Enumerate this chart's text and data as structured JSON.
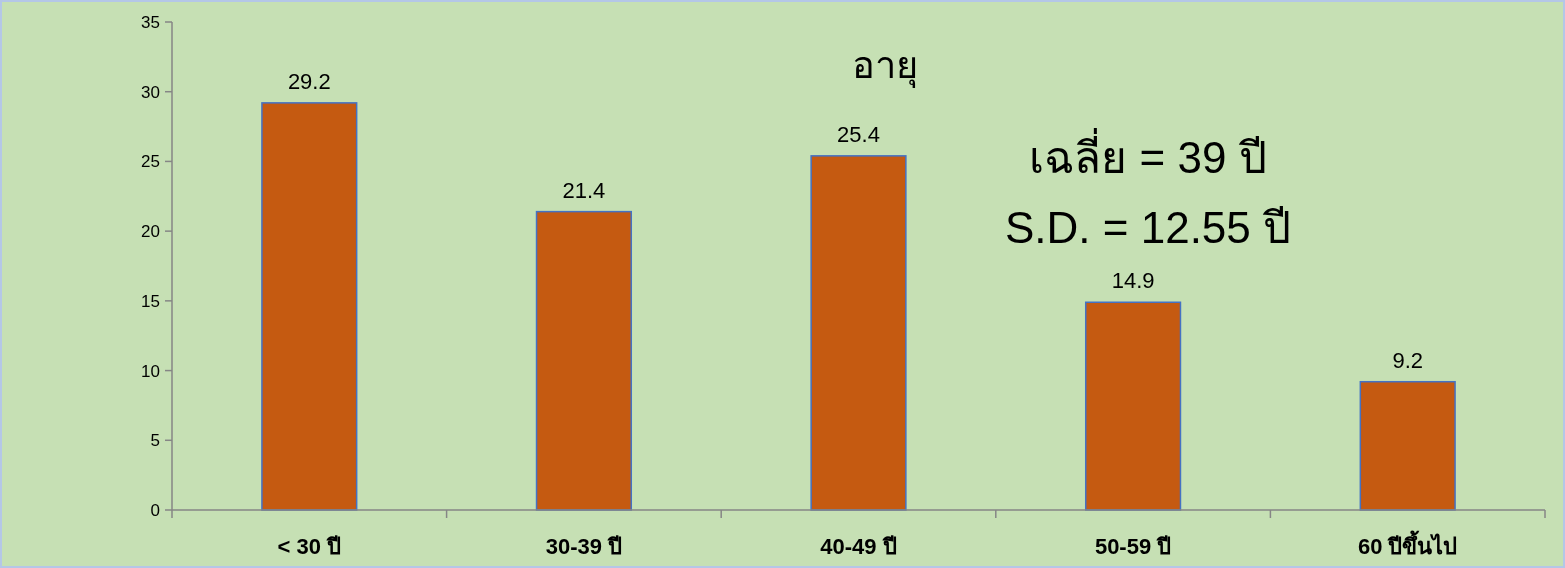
{
  "chart_data": {
    "type": "bar",
    "title": "อายุ",
    "categories": [
      "< 30 ปี",
      "30-39 ปี",
      "40-49 ปี",
      "50-59 ปี",
      "60 ปีขึ้นไป"
    ],
    "values": [
      29.2,
      21.4,
      25.4,
      14.9,
      9.2
    ],
    "color": "#c55a11",
    "ylim": [
      0,
      35
    ],
    "yticks": [
      0,
      5,
      10,
      15,
      20,
      25,
      30,
      35
    ],
    "data_labels": true,
    "annotations": [
      "เฉลี่ย = 39 ปี",
      "S.D. = 12.55 ปี"
    ]
  }
}
